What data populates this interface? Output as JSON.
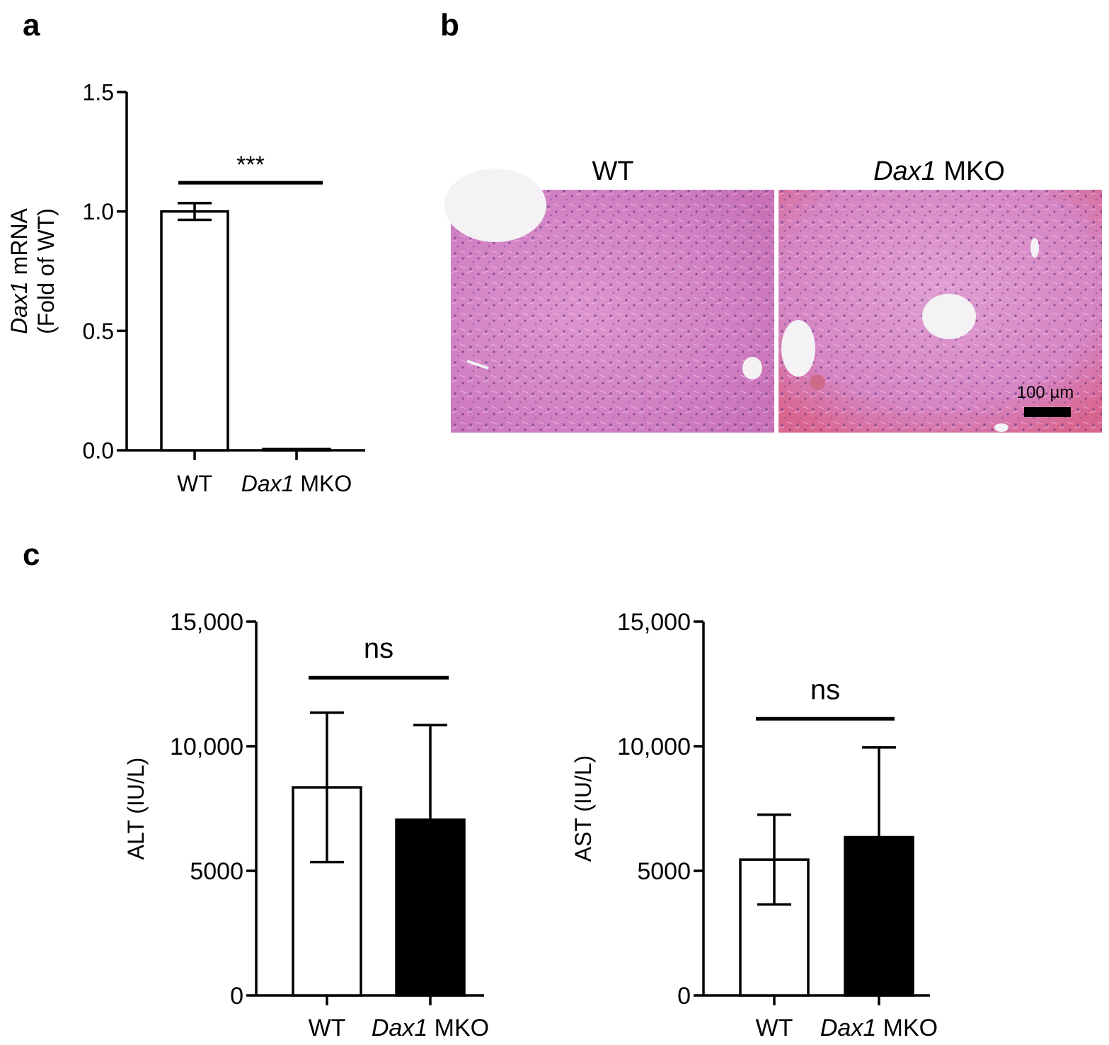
{
  "panels": {
    "a": "a",
    "b": "b",
    "c": "c"
  },
  "chart_data": [
    {
      "id": "a",
      "type": "bar",
      "categories": [
        "WT",
        "Dax1 MKO"
      ],
      "categories_italic": [
        "",
        "Dax1"
      ],
      "categories_rest": [
        "WT",
        " MKO"
      ],
      "values": [
        1.0,
        0.005
      ],
      "errors": [
        0.035,
        0.0
      ],
      "bar_colors": [
        "#ffffff",
        "#ffffff"
      ],
      "ylabel_italic": "Dax1",
      "ylabel_rest": " mRNA",
      "ylabel_line2": "(Fold of WT)",
      "ylim": [
        0,
        1.5
      ],
      "yticks": [
        "0.0",
        "0.5",
        "1.0",
        "1.5"
      ],
      "ytick_values": [
        0,
        0.5,
        1.0,
        1.5
      ],
      "significance": {
        "label": "***",
        "y": 1.12
      }
    },
    {
      "id": "c-alt",
      "type": "bar",
      "categories": [
        "WT",
        "Dax1 MKO"
      ],
      "categories_italic": [
        "",
        "Dax1"
      ],
      "categories_rest": [
        "WT",
        " MKO"
      ],
      "values": [
        8350,
        7050
      ],
      "errors": [
        3000,
        3800
      ],
      "bar_colors": [
        "#ffffff",
        "#000000"
      ],
      "ylabel": "ALT (IU/L)",
      "ylim": [
        0,
        15000
      ],
      "yticks": [
        "0",
        "5000",
        "10,000",
        "15,000"
      ],
      "ytick_values": [
        0,
        5000,
        10000,
        15000
      ],
      "significance": {
        "label": "ns",
        "y": 12750
      }
    },
    {
      "id": "c-ast",
      "type": "bar",
      "categories": [
        "WT",
        "Dax1 MKO"
      ],
      "categories_italic": [
        "",
        "Dax1"
      ],
      "categories_rest": [
        "WT",
        " MKO"
      ],
      "values": [
        5450,
        6350
      ],
      "errors": [
        1800,
        3600
      ],
      "bar_colors": [
        "#ffffff",
        "#000000"
      ],
      "ylabel": "AST (IU/L)",
      "ylim": [
        0,
        15000
      ],
      "yticks": [
        "0",
        "5000",
        "10,000",
        "15,000"
      ],
      "ytick_values": [
        0,
        5000,
        10000,
        15000
      ],
      "significance": {
        "label": "ns",
        "y": 11100
      }
    }
  ],
  "histology": {
    "left_label": "WT",
    "right_label_italic": "Dax1",
    "right_label_rest": " MKO",
    "scale_bar": "100 µm"
  },
  "colors": {
    "tissue": "#d77fc1",
    "nuclei": "#6b3c8e",
    "vessel": "#f4f2f4"
  }
}
